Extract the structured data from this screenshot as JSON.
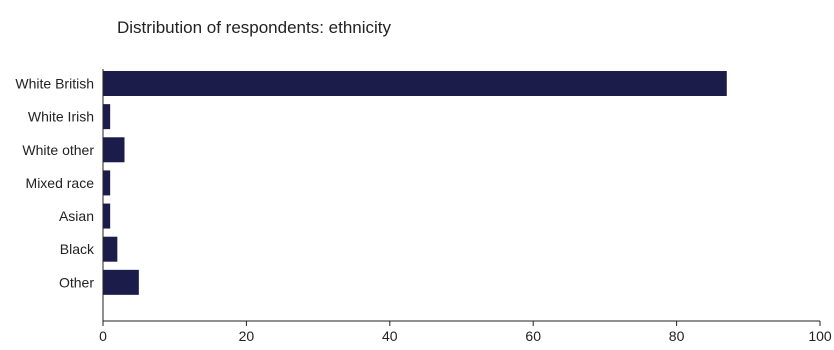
{
  "chart_data": {
    "type": "bar",
    "orientation": "horizontal",
    "title": "Distribution of respondents: ethnicity",
    "xlabel": "",
    "ylabel": "",
    "categories": [
      "White British",
      "White Irish",
      "White other",
      "Mixed race",
      "Asian",
      "Black",
      "Other"
    ],
    "values": [
      87,
      1,
      3,
      1,
      1,
      2,
      5
    ],
    "xlim": [
      0,
      100
    ],
    "xticks": [
      0,
      20,
      40,
      60,
      80,
      100
    ],
    "grid": false,
    "legend": "none",
    "bar_color": "#1c1c4a"
  }
}
